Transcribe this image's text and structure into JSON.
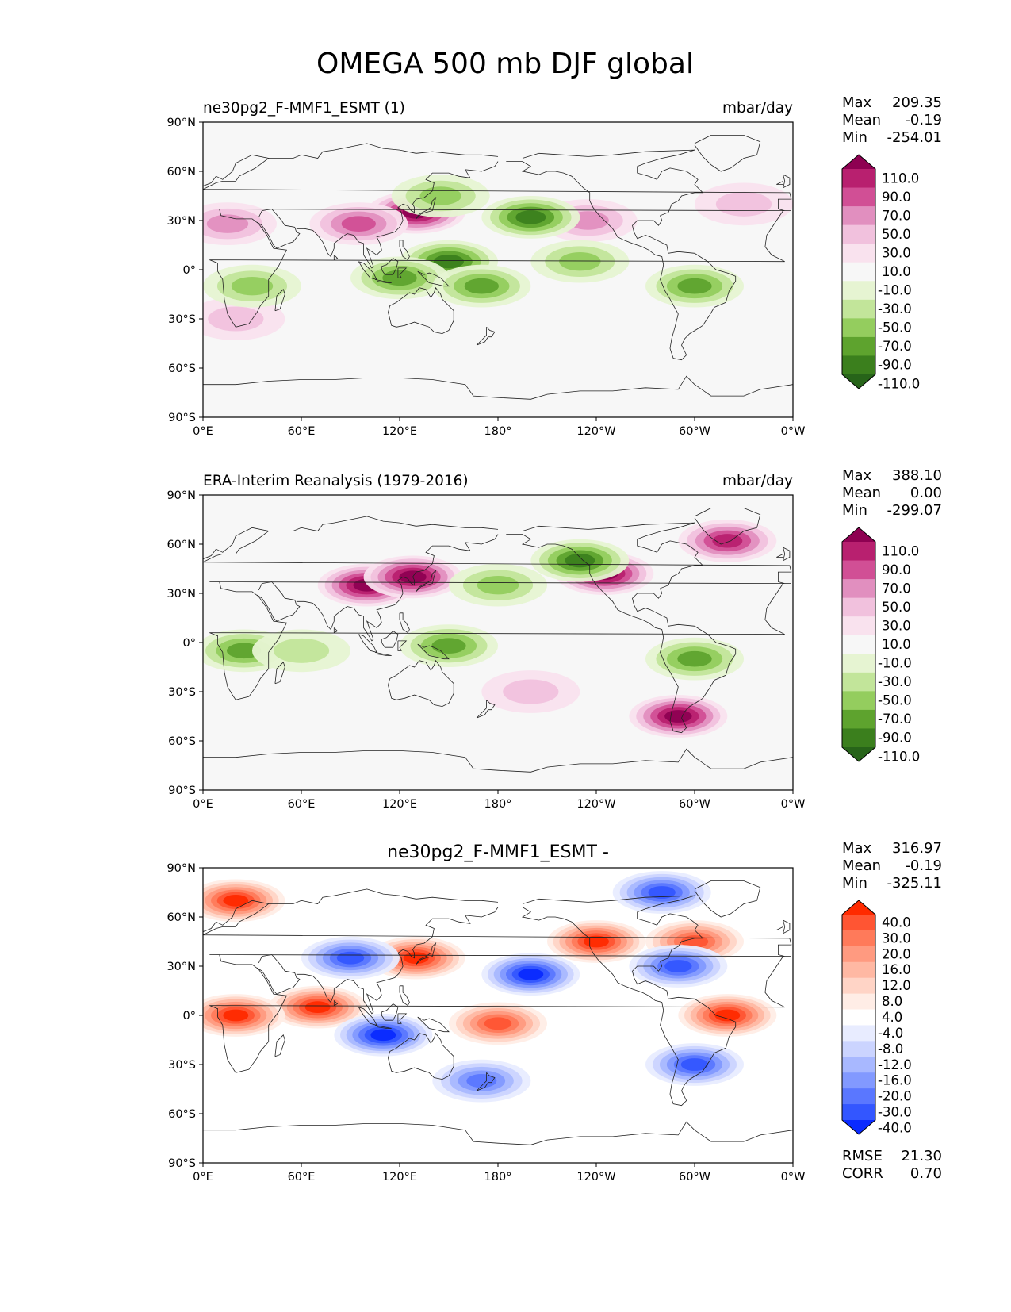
{
  "figure": {
    "title": "OMEGA 500 mb DJF global"
  },
  "panels": [
    {
      "left_title": "ne30pg2_F-MMF1_ESMT (1)",
      "right_title": "mbar/day",
      "center_title": "",
      "stats": {
        "max_label": "Max",
        "max_value": "209.35",
        "mean_label": "Mean",
        "mean_value": "-0.19",
        "min_label": "Min",
        "min_value": "-254.01"
      },
      "colorbar_id": "omega"
    },
    {
      "left_title": "ERA-Interim Reanalysis (1979-2016)",
      "right_title": "mbar/day",
      "center_title": "",
      "stats": {
        "max_label": "Max",
        "max_value": "388.10",
        "mean_label": "Mean",
        "mean_value": "0.00",
        "min_label": "Min",
        "min_value": "-299.07"
      },
      "colorbar_id": "omega"
    },
    {
      "left_title": "",
      "right_title": "",
      "center_title": "ne30pg2_F-MMF1_ESMT -",
      "stats": {
        "max_label": "Max",
        "max_value": "316.97",
        "mean_label": "Mean",
        "mean_value": "-0.19",
        "min_label": "Min",
        "min_value": "-325.11"
      },
      "colorbar_id": "diff",
      "footer": {
        "rmse_label": "RMSE",
        "rmse_value": "21.30",
        "corr_label": "CORR",
        "corr_value": "0.70"
      }
    }
  ],
  "axes": {
    "lat_ticks": [
      "90°N",
      "60°N",
      "30°N",
      "0°",
      "30°S",
      "60°S",
      "90°S"
    ],
    "lon_ticks": [
      "0°E",
      "60°E",
      "120°E",
      "180°",
      "120°W",
      "60°W",
      "0°W"
    ]
  },
  "colorbars": {
    "omega": {
      "labels": [
        "110.0",
        "90.0",
        "70.0",
        "50.0",
        "30.0",
        "10.0",
        "-10.0",
        "-30.0",
        "-50.0",
        "-70.0",
        "-90.0",
        "-110.0"
      ],
      "colors": [
        "#8e0152",
        "#b8206f",
        "#d14f95",
        "#e18fbf",
        "#f1c1dd",
        "#f9e2ee",
        "#f7f7f7",
        "#e6f4d2",
        "#c2e59a",
        "#94cd5e",
        "#5ea32e",
        "#3b7f1d",
        "#276419"
      ]
    },
    "diff": {
      "labels": [
        "40.0",
        "30.0",
        "20.0",
        "16.0",
        "12.0",
        "8.0",
        "4.0",
        "-4.0",
        "-8.0",
        "-12.0",
        "-16.0",
        "-20.0",
        "-30.0",
        "-40.0"
      ],
      "colors": [
        "#ff2a00",
        "#ff5533",
        "#ff7a5a",
        "#ff9a80",
        "#ffb8a3",
        "#ffd4c6",
        "#ffedE6",
        "#ffffff",
        "#e8ecff",
        "#cbd4ff",
        "#a8b8ff",
        "#8299ff",
        "#5a77ff",
        "#3356ff",
        "#0a2aff"
      ]
    }
  },
  "chart_data": [
    {
      "type": "heatmap",
      "title": "ne30pg2_F-MMF1_ESMT (1)",
      "units": "mbar/day",
      "projection": "global lat-lon (0°E to 360°)",
      "xlim": [
        0,
        360
      ],
      "ylim": [
        -90,
        90
      ],
      "contour_levels": [
        -110,
        -90,
        -70,
        -50,
        -30,
        -10,
        10,
        30,
        50,
        70,
        90,
        110
      ],
      "max": 209.35,
      "mean": -0.19,
      "min": -254.01,
      "features": [
        {
          "lon": 130,
          "lat": 35,
          "value": 110
        },
        {
          "lon": 95,
          "lat": 28,
          "value": 70
        },
        {
          "lon": 15,
          "lat": 28,
          "value": 50
        },
        {
          "lon": 235,
          "lat": 30,
          "value": 50
        },
        {
          "lon": 330,
          "lat": 40,
          "value": 30
        },
        {
          "lon": 20,
          "lat": -30,
          "value": 30
        },
        {
          "lon": 150,
          "lat": 5,
          "value": -90
        },
        {
          "lon": 120,
          "lat": -5,
          "value": -70
        },
        {
          "lon": 170,
          "lat": -10,
          "value": -70
        },
        {
          "lon": 200,
          "lat": 32,
          "value": -90
        },
        {
          "lon": 145,
          "lat": 45,
          "value": -50
        },
        {
          "lon": 300,
          "lat": -10,
          "value": -70
        },
        {
          "lon": 30,
          "lat": -10,
          "value": -50
        },
        {
          "lon": 230,
          "lat": 5,
          "value": -50
        }
      ]
    },
    {
      "type": "heatmap",
      "title": "ERA-Interim Reanalysis (1979-2016)",
      "units": "mbar/day",
      "projection": "global lat-lon (0°E to 360°)",
      "xlim": [
        0,
        360
      ],
      "ylim": [
        -90,
        90
      ],
      "contour_levels": [
        -110,
        -90,
        -70,
        -50,
        -30,
        -10,
        10,
        30,
        50,
        70,
        90,
        110
      ],
      "max": 388.1,
      "mean": 0.0,
      "min": -299.07,
      "features": [
        {
          "lon": 100,
          "lat": 35,
          "value": 110
        },
        {
          "lon": 128,
          "lat": 40,
          "value": 110
        },
        {
          "lon": 245,
          "lat": 42,
          "value": 110
        },
        {
          "lon": 290,
          "lat": -45,
          "value": 110
        },
        {
          "lon": 320,
          "lat": 62,
          "value": 90
        },
        {
          "lon": 230,
          "lat": 50,
          "value": -90
        },
        {
          "lon": 150,
          "lat": -2,
          "value": -70
        },
        {
          "lon": 25,
          "lat": -5,
          "value": -70
        },
        {
          "lon": 300,
          "lat": -10,
          "value": -70
        },
        {
          "lon": 180,
          "lat": 35,
          "value": -50
        },
        {
          "lon": 60,
          "lat": -5,
          "value": -30
        },
        {
          "lon": 200,
          "lat": -30,
          "value": 30
        }
      ]
    },
    {
      "type": "heatmap",
      "title": "ne30pg2_F-MMF1_ESMT -",
      "units": "mbar/day",
      "projection": "global lat-lon (0°E to 360°)",
      "xlim": [
        0,
        360
      ],
      "ylim": [
        -90,
        90
      ],
      "contour_levels": [
        -40,
        -30,
        -20,
        -16,
        -12,
        -8,
        -4,
        4,
        8,
        12,
        16,
        20,
        30,
        40
      ],
      "max": 316.97,
      "mean": -0.19,
      "min": -325.11,
      "rmse": 21.3,
      "corr": 0.7,
      "features": [
        {
          "lon": 70,
          "lat": 5,
          "value": 40
        },
        {
          "lon": 20,
          "lat": 0,
          "value": 40
        },
        {
          "lon": 180,
          "lat": -5,
          "value": 30
        },
        {
          "lon": 320,
          "lat": 0,
          "value": 40
        },
        {
          "lon": 240,
          "lat": 45,
          "value": 40
        },
        {
          "lon": 130,
          "lat": 35,
          "value": 40
        },
        {
          "lon": 20,
          "lat": 70,
          "value": 40
        },
        {
          "lon": 300,
          "lat": 45,
          "value": 30
        },
        {
          "lon": 200,
          "lat": 25,
          "value": -40
        },
        {
          "lon": 110,
          "lat": -12,
          "value": -40
        },
        {
          "lon": 290,
          "lat": 30,
          "value": -30
        },
        {
          "lon": 90,
          "lat": 35,
          "value": -30
        },
        {
          "lon": 170,
          "lat": -40,
          "value": -20
        },
        {
          "lon": 300,
          "lat": -30,
          "value": -30
        },
        {
          "lon": 280,
          "lat": 75,
          "value": -30
        }
      ]
    }
  ]
}
